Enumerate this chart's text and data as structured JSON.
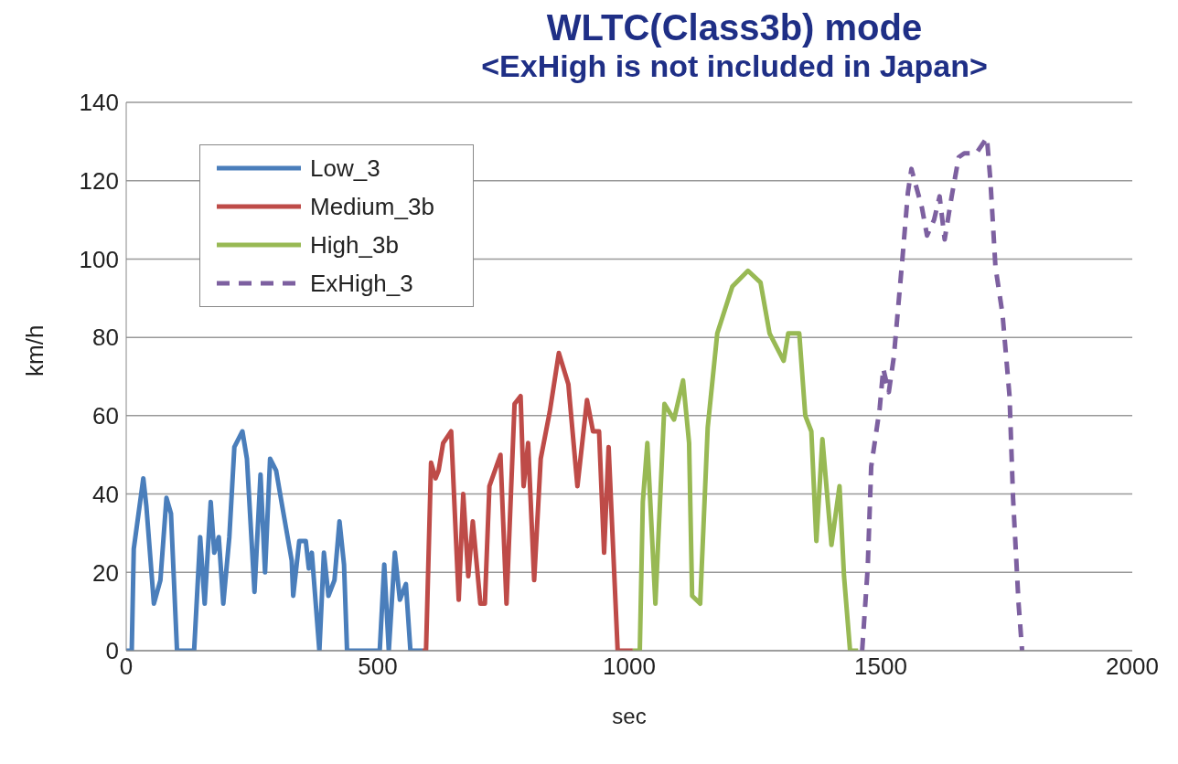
{
  "chart_data": {
    "type": "line",
    "title": "WLTC(Class3b) mode",
    "subtitle": "<ExHigh is not included in Japan>",
    "xlabel": "sec",
    "ylabel": "km/h",
    "xlim": [
      0,
      2000
    ],
    "xticks": [
      0,
      500,
      1000,
      1500,
      2000
    ],
    "ylim": [
      0,
      140
    ],
    "yticks": [
      0,
      20,
      40,
      60,
      80,
      100,
      120,
      140
    ],
    "grid": "y",
    "legend": "top left",
    "marker": "none",
    "series": [
      {
        "name": "Low_3",
        "color": "#4a7ebb",
        "line_style": "solid",
        "x": [
          0,
          11,
          15,
          34,
          40,
          55,
          68,
          80,
          89,
          101,
          135,
          147,
          156,
          168,
          175,
          184,
          193,
          205,
          215,
          231,
          240,
          255,
          267,
          276,
          286,
          298,
          310,
          329,
          332,
          344,
          357,
          363,
          369,
          384,
          393,
          402,
          414,
          424,
          433,
          439,
          504,
          513,
          522,
          534,
          544,
          556,
          565,
          589
        ],
        "values": [
          0,
          0,
          26,
          44,
          37,
          12,
          18,
          39,
          35,
          0,
          0,
          29,
          12,
          38,
          25,
          29,
          12,
          29,
          52,
          56,
          49,
          15,
          45,
          20,
          49,
          46,
          37,
          23,
          14,
          28,
          28,
          21,
          25,
          0,
          25,
          14,
          18,
          33,
          22,
          0,
          0,
          22,
          0,
          25,
          13,
          17,
          0,
          0
        ]
      },
      {
        "name": "Medium_3b",
        "color": "#be4b48",
        "line_style": "solid",
        "x": [
          589,
          596,
          606,
          615,
          621,
          630,
          646,
          661,
          670,
          680,
          689,
          704,
          713,
          722,
          744,
          756,
          772,
          784,
          790,
          799,
          811,
          824,
          842,
          860,
          879,
          897,
          916,
          928,
          940,
          950,
          959,
          977,
          1007
        ],
        "values": [
          0,
          0,
          48,
          44,
          46,
          53,
          56,
          13,
          40,
          19,
          33,
          12,
          12,
          42,
          50,
          12,
          63,
          65,
          42,
          53,
          18,
          49,
          61,
          76,
          68,
          42,
          64,
          56,
          56,
          25,
          52,
          0,
          0
        ]
      },
      {
        "name": "High_3b",
        "color": "#98b954",
        "line_style": "solid",
        "x": [
          1007,
          1021,
          1027,
          1036,
          1052,
          1070,
          1089,
          1107,
          1119,
          1125,
          1141,
          1156,
          1175,
          1205,
          1236,
          1261,
          1279,
          1307,
          1316,
          1338,
          1350,
          1362,
          1372,
          1384,
          1402,
          1418,
          1427,
          1439,
          1455
        ],
        "values": [
          0,
          0,
          38,
          53,
          12,
          63,
          59,
          69,
          53,
          14,
          12,
          57,
          81,
          93,
          97,
          94,
          81,
          74,
          81,
          81,
          60,
          56,
          28,
          54,
          27,
          42,
          19,
          0,
          0
        ]
      },
      {
        "name": "ExHigh_3",
        "color": "#7d60a0",
        "line_style": "dashed",
        "x": [
          1463,
          1474,
          1481,
          1498,
          1505,
          1516,
          1526,
          1543,
          1554,
          1561,
          1582,
          1592,
          1606,
          1617,
          1627,
          1641,
          1655,
          1666,
          1690,
          1711,
          1718,
          1728,
          1742,
          1756,
          1763,
          1774,
          1781
        ],
        "values": [
          0,
          21,
          47,
          62,
          72,
          66,
          75,
          100,
          117,
          123,
          113,
          106,
          110,
          116,
          105,
          116,
          126,
          127,
          127,
          131,
          120,
          98,
          86,
          65,
          39,
          12,
          0
        ]
      }
    ]
  }
}
